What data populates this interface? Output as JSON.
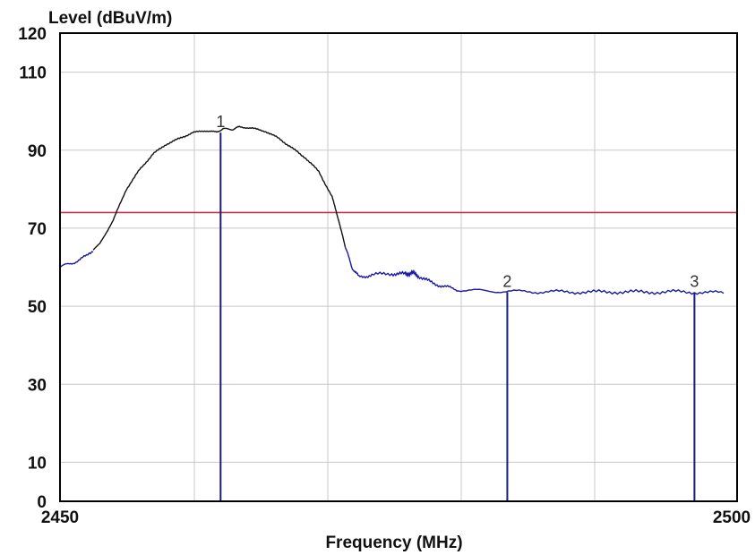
{
  "chart_data": {
    "type": "line",
    "ylabel": "Level (dBuV/m)",
    "xlabel": "Frequency (MHz)",
    "xlim": [
      2450,
      2500
    ],
    "ylim": [
      0,
      120
    ],
    "x_tick_labels": [
      "2450",
      "2500"
    ],
    "y_ticks": [
      0,
      10,
      30,
      50,
      70,
      90,
      110,
      120
    ],
    "grid": true,
    "limit_line": {
      "value": 74,
      "color": "#c0304a"
    },
    "series": [
      {
        "color_segments": [
          {
            "from": 2450,
            "to": 2452.5,
            "color": "#1a1aa0"
          },
          {
            "from": 2452.5,
            "to": 2471.5,
            "color": "#111111"
          },
          {
            "from": 2471.5,
            "to": 2500,
            "color": "#1a1aa0"
          }
        ],
        "points": [
          [
            2450.0,
            60.0
          ],
          [
            2451.0,
            61.2
          ],
          [
            2452.0,
            62.8
          ],
          [
            2453.0,
            66.0
          ],
          [
            2454.0,
            72.0
          ],
          [
            2455.0,
            80.0
          ],
          [
            2456.0,
            85.0
          ],
          [
            2457.0,
            89.0
          ],
          [
            2458.0,
            91.5
          ],
          [
            2459.0,
            93.0
          ],
          [
            2460.0,
            94.5
          ],
          [
            2461.0,
            95.0
          ],
          [
            2461.8,
            94.6
          ],
          [
            2462.3,
            95.5
          ],
          [
            2463.0,
            95.3
          ],
          [
            2463.5,
            96.0
          ],
          [
            2464.5,
            95.6
          ],
          [
            2465.5,
            94.8
          ],
          [
            2466.5,
            93.0
          ],
          [
            2467.5,
            90.5
          ],
          [
            2468.5,
            88.0
          ],
          [
            2469.5,
            84.5
          ],
          [
            2470.5,
            78.0
          ],
          [
            2471.0,
            72.0
          ],
          [
            2471.5,
            65.0
          ],
          [
            2472.0,
            60.0
          ],
          [
            2472.5,
            57.5
          ],
          [
            2473.5,
            58.0
          ],
          [
            2475.0,
            58.4
          ],
          [
            2476.0,
            58.2
          ],
          [
            2476.5,
            58.6
          ],
          [
            2477.0,
            57.8
          ],
          [
            2478.0,
            56.0
          ],
          [
            2479.0,
            55.0
          ],
          [
            2480.0,
            54.2
          ],
          [
            2482.0,
            53.9
          ],
          [
            2484.0,
            53.8
          ],
          [
            2486.0,
            53.7
          ],
          [
            2488.0,
            53.7
          ],
          [
            2490.0,
            53.6
          ],
          [
            2492.0,
            53.7
          ],
          [
            2494.0,
            53.6
          ],
          [
            2496.0,
            53.7
          ],
          [
            2498.0,
            53.6
          ],
          [
            2500.0,
            53.4
          ]
        ]
      }
    ],
    "markers": [
      {
        "label": "1",
        "x": 2462.1,
        "y": 94.5
      },
      {
        "label": "2",
        "x": 2483.7,
        "y": 53.6
      },
      {
        "label": "3",
        "x": 2497.8,
        "y": 53.6
      }
    ]
  }
}
